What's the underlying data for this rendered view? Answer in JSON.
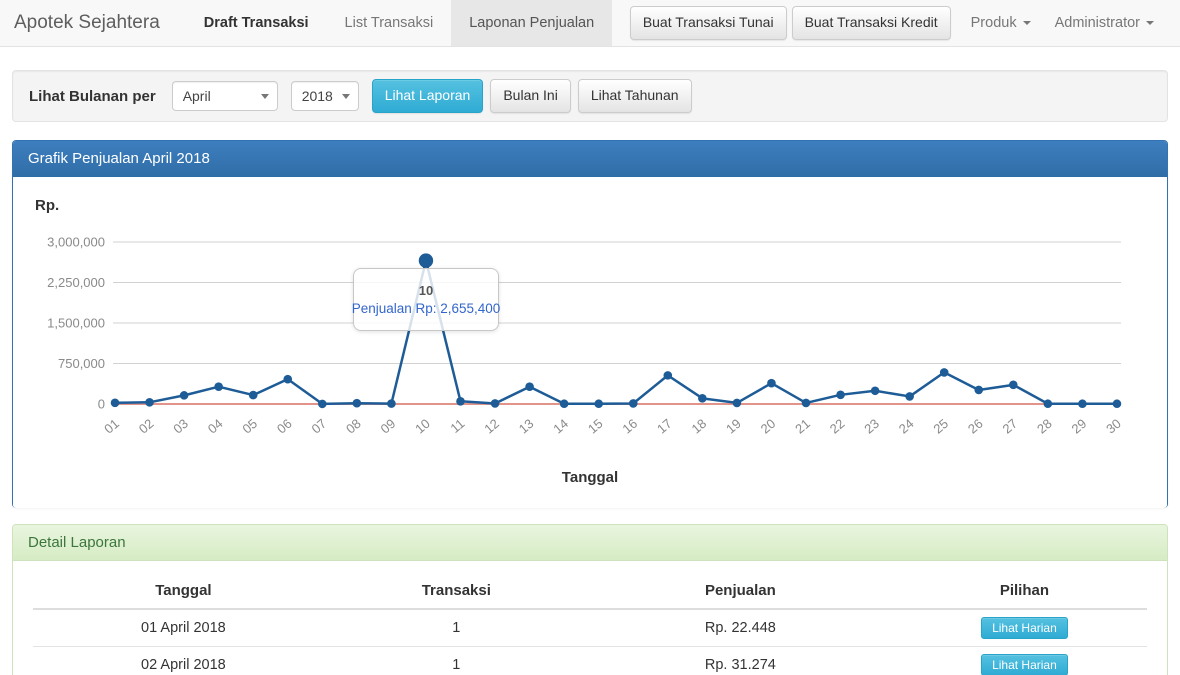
{
  "navbar": {
    "brand": "Apotek Sejahtera",
    "items": [
      {
        "label": "Draft Transaksi",
        "bold": true,
        "active": false
      },
      {
        "label": "List Transaksi",
        "bold": false,
        "active": false
      },
      {
        "label": "Laponan Penjualan",
        "bold": false,
        "active": true
      }
    ],
    "buttons": [
      "Buat Transaksi Tunai",
      "Buat Transaksi Kredit"
    ],
    "dropdowns": [
      "Produk",
      "Administrator"
    ]
  },
  "filter": {
    "label": "Lihat Bulanan per",
    "month_select": {
      "value": "April"
    },
    "year_select": {
      "value": "2018"
    },
    "view_report_button": "Lihat Laporan",
    "this_month_button": "Bulan Ini",
    "yearly_button": "Lihat Tahunan"
  },
  "chart_panel": {
    "title": "Grafik Penjualan April 2018",
    "y_unit_label": "Rp.",
    "x_axis_title": "Tanggal",
    "tooltip": {
      "day": "10",
      "text": "Penjualan Rp: 2,655,400"
    }
  },
  "chart_data": {
    "type": "line",
    "title": "Grafik Penjualan April 2018",
    "xlabel": "Tanggal",
    "ylabel": "Rp.",
    "x": [
      "01",
      "02",
      "03",
      "04",
      "05",
      "06",
      "07",
      "08",
      "09",
      "10",
      "11",
      "12",
      "13",
      "14",
      "15",
      "16",
      "17",
      "18",
      "19",
      "20",
      "21",
      "22",
      "23",
      "24",
      "25",
      "26",
      "27",
      "28",
      "29",
      "30"
    ],
    "series": [
      {
        "name": "Penjualan",
        "color": "#1e5c97",
        "values": [
          22448,
          31274,
          160000,
          320000,
          165000,
          460000,
          2000,
          15000,
          8000,
          2655400,
          50000,
          10000,
          320000,
          5000,
          5000,
          10000,
          530000,
          105000,
          20000,
          385000,
          20000,
          170000,
          245000,
          140000,
          585000,
          260000,
          355000,
          5000,
          5000,
          5000
        ]
      }
    ],
    "y_ticks": [
      0,
      750000,
      1500000,
      2250000,
      3000000
    ],
    "y_tick_labels": [
      "0",
      "750,000",
      "1,500,000",
      "2,250,000",
      "3,000,000"
    ],
    "ylim": [
      0,
      3000000
    ],
    "grid": true,
    "zero_line_color": "#e2948b",
    "gridline_color": "#d2d2d2",
    "selected_point": {
      "x": "10",
      "index": 9,
      "value": 2655400,
      "tooltip": "Penjualan Rp: 2,655,400"
    }
  },
  "detail_panel": {
    "title": "Detail Laporan",
    "table": {
      "headers": [
        "Tanggal",
        "Transaksi",
        "Penjualan",
        "Pilihan"
      ],
      "rows": [
        {
          "tanggal": "01 April 2018",
          "transaksi": "1",
          "penjualan": "Rp. 22.448",
          "action": "Lihat Harian"
        },
        {
          "tanggal": "02 April 2018",
          "transaksi": "1",
          "penjualan": "Rp. 31.274",
          "action": "Lihat Harian"
        }
      ]
    }
  },
  "colors": {
    "primary_panel": "#3473b2",
    "info_button": "#39b3d7",
    "success_text": "#3c763d",
    "navbar_active_bg": "#e7e7e7"
  }
}
